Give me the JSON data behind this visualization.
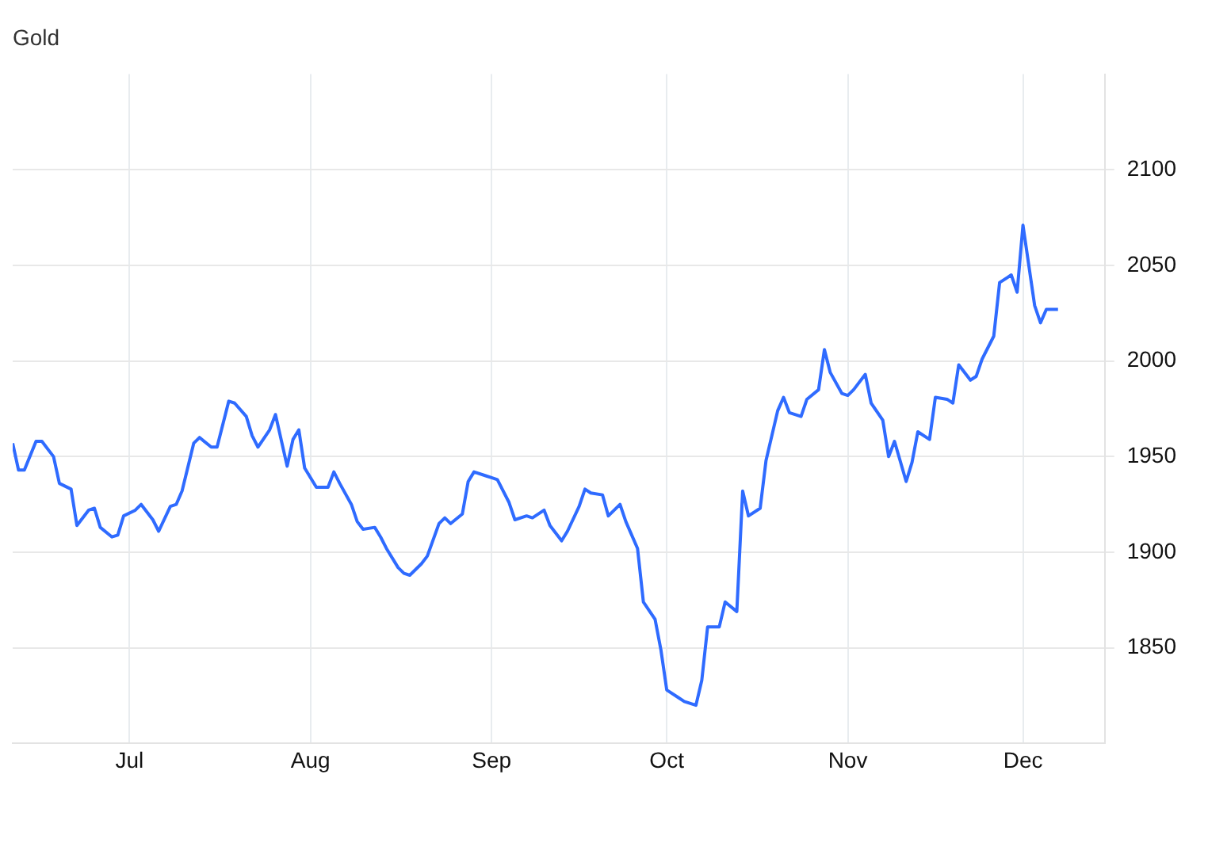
{
  "chart_data": {
    "type": "line",
    "title": "Gold",
    "x": [
      "--06-11",
      "--06-12",
      "--06-13",
      "--06-15",
      "--06-16",
      "--06-18",
      "--06-19",
      "--06-21",
      "--06-22",
      "--06-24",
      "--06-25",
      "--06-26",
      "--06-28",
      "--06-29",
      "--06-30",
      "--07-02",
      "--07-03",
      "--07-05",
      "--07-06",
      "--07-08",
      "--07-09",
      "--07-10",
      "--07-12",
      "--07-13",
      "--07-15",
      "--07-16",
      "--07-18",
      "--07-19",
      "--07-21",
      "--07-22",
      "--07-23",
      "--07-25",
      "--07-26",
      "--07-28",
      "--07-29",
      "--07-30",
      "--07-31",
      "--08-02",
      "--08-04",
      "--08-05",
      "--08-06",
      "--08-08",
      "--08-09",
      "--08-10",
      "--08-12",
      "--08-13",
      "--08-14",
      "--08-16",
      "--08-17",
      "--08-18",
      "--08-20",
      "--08-21",
      "--08-23",
      "--08-24",
      "--08-25",
      "--08-27",
      "--08-28",
      "--08-29",
      "--08-31",
      "--09-01",
      "--09-02",
      "--09-04",
      "--09-05",
      "--09-07",
      "--09-08",
      "--09-10",
      "--09-11",
      "--09-13",
      "--09-14",
      "--09-16",
      "--09-17",
      "--09-18",
      "--09-20",
      "--09-21",
      "--09-23",
      "--09-24",
      "--09-26",
      "--09-27",
      "--09-29",
      "--09-30",
      "--10-01",
      "--10-03",
      "--10-04",
      "--10-06",
      "--10-07",
      "--10-08",
      "--10-10",
      "--10-11",
      "--10-13",
      "--10-14",
      "--10-15",
      "--10-17",
      "--10-18",
      "--10-20",
      "--10-21",
      "--10-22",
      "--10-24",
      "--10-25",
      "--10-27",
      "--10-28",
      "--10-29",
      "--10-31",
      "--11-01",
      "--11-02",
      "--11-04",
      "--11-05",
      "--11-07",
      "--11-08",
      "--11-09",
      "--11-11",
      "--11-12",
      "--11-13",
      "--11-15",
      "--11-16",
      "--11-18",
      "--11-19",
      "--11-20",
      "--11-22",
      "--11-23",
      "--11-24",
      "--11-26",
      "--11-27",
      "--11-29",
      "--11-30",
      "--12-01",
      "--12-03",
      "--12-04",
      "--12-05",
      "--12-07"
    ],
    "series": [
      {
        "color": "#2f6bff",
        "values": [
          1957,
          1943,
          1943,
          1958,
          1958,
          1950,
          1936,
          1933,
          1914,
          1922,
          1923,
          1913,
          1908,
          1909,
          1919,
          1922,
          1925,
          1917,
          1911,
          1924,
          1925,
          1932,
          1957,
          1960,
          1955,
          1955,
          1979,
          1978,
          1971,
          1961,
          1955,
          1964,
          1972,
          1945,
          1959,
          1964,
          1944,
          1934,
          1934,
          1942,
          1936,
          1925,
          1916,
          1912,
          1913,
          1908,
          1902,
          1892,
          1889,
          1888,
          1894,
          1898,
          1915,
          1918,
          1915,
          1920,
          1937,
          1942,
          1940,
          1939,
          1938,
          1926,
          1917,
          1919,
          1918,
          1922,
          1914,
          1906,
          1911,
          1924,
          1933,
          1931,
          1930,
          1919,
          1925,
          1916,
          1902,
          1874,
          1865,
          1849,
          1828,
          1824,
          1822,
          1820,
          1833,
          1861,
          1861,
          1874,
          1869,
          1932,
          1919,
          1923,
          1948,
          1974,
          1981,
          1973,
          1971,
          1980,
          1985,
          2006,
          1994,
          1983,
          1982,
          1985,
          1993,
          1978,
          1969,
          1950,
          1958,
          1937,
          1947,
          1963,
          1959,
          1981,
          1980,
          1978,
          1998,
          1990,
          1992,
          2001,
          2013,
          2041,
          2045,
          2036,
          2071,
          2029,
          2020,
          2027,
          2027
        ]
      }
    ],
    "xlim": [
      "--06-11",
      "--12-15"
    ],
    "xticks": [
      {
        "value": "--07-01",
        "label": "Jul"
      },
      {
        "value": "--08-01",
        "label": "Aug"
      },
      {
        "value": "--09-01",
        "label": "Sep"
      },
      {
        "value": "--10-01",
        "label": "Oct"
      },
      {
        "value": "--11-01",
        "label": "Nov"
      },
      {
        "value": "--12-01",
        "label": "Dec"
      }
    ],
    "ylim": [
      1800,
      2150
    ],
    "yticks": [
      1850,
      1900,
      1950,
      2000,
      2050,
      2100
    ],
    "grid": true,
    "legend": false,
    "marker": "none",
    "line_style": "solid"
  }
}
